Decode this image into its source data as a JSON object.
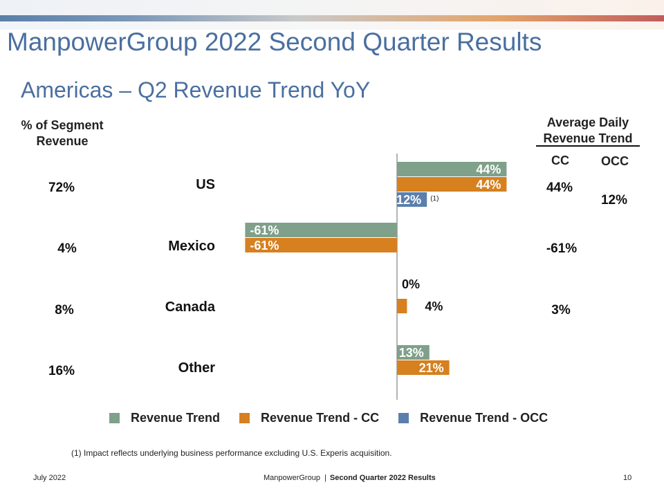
{
  "header": {
    "title": "ManpowerGroup 2022 Second Quarter Results",
    "subtitle": "Americas – Q2 Revenue Trend YoY"
  },
  "left_col": {
    "header_line1": "% of Segment",
    "header_line2": "Revenue",
    "values": [
      "72%",
      "4%",
      "8%",
      "16%"
    ]
  },
  "right_col": {
    "header_line1": "Average Daily",
    "header_line2": "Revenue Trend",
    "cc_label": "CC",
    "occ_label": "OCC",
    "cc_values": [
      "44%",
      "-61%",
      "3%"
    ],
    "occ_value": "12%"
  },
  "chart_data": {
    "type": "bar",
    "orientation": "horizontal",
    "categories": [
      "US",
      "Mexico",
      "Canada",
      "Other"
    ],
    "series": [
      {
        "name": "Revenue Trend",
        "color": "#7fa08a",
        "values": [
          44,
          -61,
          0,
          13
        ],
        "labels": [
          "44%",
          "-61%",
          "0%",
          "13%"
        ]
      },
      {
        "name": "Revenue Trend - CC",
        "color": "#d6801f",
        "values": [
          44,
          -61,
          4,
          21
        ],
        "labels": [
          "44%",
          "-61%",
          "4%",
          "21%"
        ]
      },
      {
        "name": "Revenue Trend - OCC",
        "color": "#5b7fac",
        "values": [
          12,
          null,
          null,
          null
        ],
        "labels": [
          "12%",
          null,
          null,
          null
        ]
      }
    ],
    "annotation": "(1)",
    "xlim": [
      -61,
      44
    ],
    "legend_position": "bottom"
  },
  "footnote": "(1)  Impact reflects underlying business performance excluding U.S. Experis acquisition.",
  "footer": {
    "date": "July 2022",
    "brand": "ManpowerGroup",
    "separator": "|",
    "doc": "Second Quarter 2022 Results",
    "page": "10"
  }
}
